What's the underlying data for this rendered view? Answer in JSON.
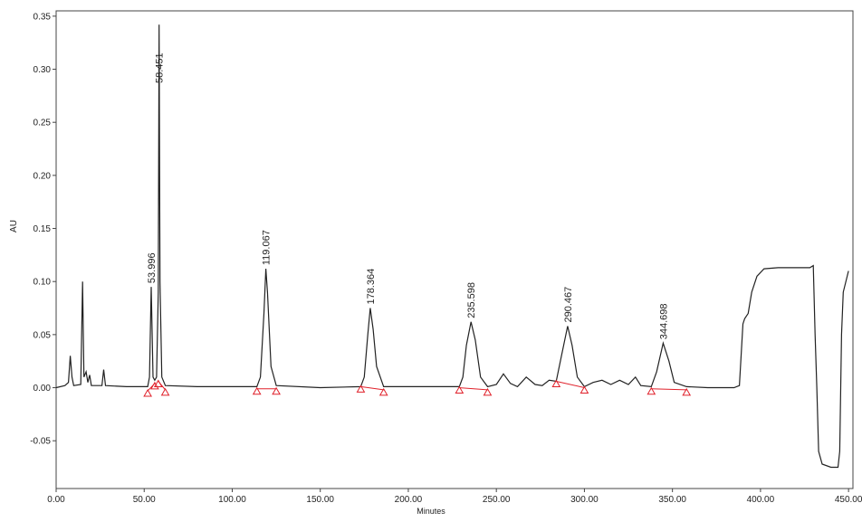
{
  "chart_data": {
    "type": "line",
    "xlabel": "Minutes",
    "ylabel": "AU",
    "xlim": [
      0,
      452.5
    ],
    "ylim": [
      -0.095,
      0.355
    ],
    "xticks": [
      {
        "value": 0,
        "label": "0.00"
      },
      {
        "value": 50,
        "label": "50.00"
      },
      {
        "value": 100,
        "label": "100.00"
      },
      {
        "value": 150,
        "label": "150.00"
      },
      {
        "value": 200,
        "label": "200.00"
      },
      {
        "value": 250,
        "label": "250.00"
      },
      {
        "value": 300,
        "label": "300.00"
      },
      {
        "value": 350,
        "label": "350.00"
      },
      {
        "value": 400,
        "label": "400.00"
      },
      {
        "value": 450,
        "label": "450.00"
      }
    ],
    "yticks": [
      {
        "value": -0.05,
        "label": "-0.05"
      },
      {
        "value": 0,
        "label": "0.00"
      },
      {
        "value": 0.05,
        "label": "0.05"
      },
      {
        "value": 0.1,
        "label": "0.10"
      },
      {
        "value": 0.15,
        "label": "0.15"
      },
      {
        "value": 0.2,
        "label": "0.20"
      },
      {
        "value": 0.25,
        "label": "0.25"
      },
      {
        "value": 0.3,
        "label": "0.30"
      },
      {
        "value": 0.35,
        "label": "0.35"
      }
    ],
    "color": "#222222",
    "baseline_color": "#e0202a",
    "x": [
      0,
      5,
      7,
      8,
      9,
      10,
      14,
      15,
      15.8,
      17,
      18,
      19,
      20,
      26,
      27,
      28,
      40,
      52,
      53,
      54,
      55,
      56,
      57,
      58,
      58.45,
      59,
      60,
      62,
      80,
      100,
      114,
      116,
      118,
      119.07,
      120,
      122,
      125,
      150,
      173,
      175,
      177,
      178.36,
      180,
      182,
      186,
      229,
      231,
      233,
      235.6,
      238,
      241,
      245,
      250,
      254,
      258,
      262,
      267,
      272,
      276,
      280,
      284,
      287,
      290.47,
      293,
      296,
      300,
      305,
      310,
      315,
      320,
      325,
      329,
      332,
      338,
      341,
      344.7,
      348,
      351,
      358,
      370,
      385,
      388,
      390,
      391,
      393,
      395,
      398,
      402,
      410,
      420,
      428,
      430,
      431,
      432,
      433,
      435,
      440,
      444,
      445,
      446,
      447,
      450
    ],
    "values": [
      0,
      0.002,
      0.005,
      0.03,
      0.01,
      0.002,
      0.003,
      0.1,
      0.01,
      0.015,
      0.005,
      0.012,
      0.002,
      0.002,
      0.017,
      0.002,
      0.001,
      0.001,
      0.01,
      0.095,
      0.01,
      0.007,
      0.01,
      0.09,
      0.342,
      0.1,
      0.01,
      0.002,
      0.001,
      0.001,
      0.001,
      0.01,
      0.07,
      0.112,
      0.09,
      0.02,
      0.002,
      0,
      0.001,
      0.01,
      0.05,
      0.075,
      0.055,
      0.02,
      0.001,
      0.001,
      0.01,
      0.04,
      0.062,
      0.045,
      0.01,
      0.001,
      0.003,
      0.013,
      0.004,
      0.001,
      0.01,
      0.003,
      0.002,
      0.007,
      0.006,
      0.03,
      0.058,
      0.04,
      0.01,
      0.001,
      0.005,
      0.007,
      0.003,
      0.007,
      0.003,
      0.01,
      0.002,
      0.001,
      0.015,
      0.042,
      0.025,
      0.005,
      0.001,
      0,
      0,
      0.002,
      0.06,
      0.065,
      0.07,
      0.09,
      0.105,
      0.112,
      0.113,
      0.113,
      0.113,
      0.115,
      0.05,
      0,
      -0.06,
      -0.072,
      -0.075,
      -0.075,
      -0.06,
      0.05,
      0.09,
      0.11
    ],
    "peaks": [
      {
        "time": 53.996,
        "height": 0.095
      },
      {
        "time": 58.451,
        "height": 0.342
      },
      {
        "time": 119.067,
        "height": 0.112
      },
      {
        "time": 178.364,
        "height": 0.075
      },
      {
        "time": 235.598,
        "height": 0.062
      },
      {
        "time": 290.467,
        "height": 0.058
      },
      {
        "time": 344.698,
        "height": 0.042
      }
    ],
    "baselines": [
      {
        "x": [
          52,
          56
        ],
        "y": [
          -0.003,
          0.004
        ]
      },
      {
        "x": [
          58,
          62
        ],
        "y": [
          0.006,
          -0.002
        ]
      },
      {
        "x": [
          114,
          125
        ],
        "y": [
          -0.001,
          -0.001
        ]
      },
      {
        "x": [
          173,
          186
        ],
        "y": [
          0.001,
          -0.002
        ]
      },
      {
        "x": [
          229,
          245
        ],
        "y": [
          0,
          -0.002
        ]
      },
      {
        "x": [
          284,
          300
        ],
        "y": [
          0.006,
          0
        ]
      },
      {
        "x": [
          338,
          358
        ],
        "y": [
          -0.001,
          -0.002
        ]
      }
    ]
  }
}
